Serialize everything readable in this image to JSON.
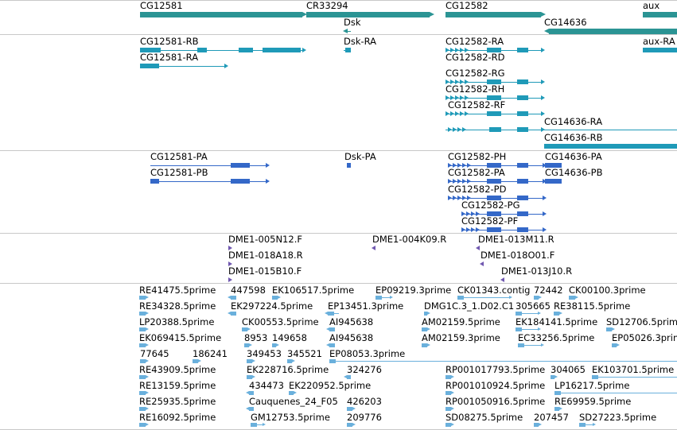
{
  "colors": {
    "gene": "#2b9494",
    "transcript": "#1f9ab8",
    "protein": "#3468c8",
    "clone": "#7058b0",
    "est": "#6ab0dc",
    "separator": "#c8c8c8"
  },
  "tracks": {
    "genes": {
      "labels": [
        "CG12581",
        "CR33294",
        "CG12582",
        "aux",
        "Dsk",
        "CG14636"
      ]
    },
    "transcripts": {
      "labels": [
        "CG12581-RB",
        "Dsk-RA",
        "CG12582-RA",
        "aux-RA",
        "CG12581-RA",
        "CG12582-RD",
        "CG12582-RG",
        "CG12582-RH",
        "CG12582-RF",
        "CG14636-RA",
        "CG14636-RB"
      ]
    },
    "proteins": {
      "labels": [
        "CG12581-PA",
        "Dsk-PA",
        "CG12582-PH",
        "CG14636-PA",
        "CG12581-PB",
        "CG12582-PA",
        "CG14636-PB",
        "CG12582-PD",
        "CG12582-PG",
        "CG12582-PF"
      ]
    },
    "clones": {
      "labels": [
        "DME1-005N12.F",
        "DME1-004K09.R",
        "DME1-013M11.R",
        "DME1-018A18.R",
        "DME1-018O01.F",
        "DME1-015B10.F",
        "DME1-013J10.R"
      ]
    },
    "ests": {
      "labels": [
        "RE41475.5prime",
        "447598",
        "EK106517.5prime",
        "EP09219.3prime",
        "CK01343.contig",
        "72442",
        "CK00100.3prime",
        "RE34328.5prime",
        "EK297224.5prime",
        "EP13451.3prime",
        "DMG1C.3_1.D02.C1",
        "305665",
        "RE38115.5prime",
        "LP20388.5prime",
        "CK00553.5prime",
        "AI945638",
        "AM02159.5prime",
        "EK184141.5prime",
        "SD12706.5prime",
        "EK069415.5prime",
        "8953",
        "149658",
        "AI945638",
        "AM02159.3prime",
        "EC33256.5prime",
        "EP05026.3prime",
        "77645",
        "186241",
        "349453",
        "345521",
        "EP08053.3prime",
        "RE43909.5prime",
        "EK228716.5prime",
        "324276",
        "RP001017793.5prime",
        "304065",
        "EK103701.5prime",
        "RE13159.5prime",
        "434473",
        "EK220952.5prime",
        "RP001010924.5prime",
        "LP16217.5prime",
        "RE25935.5prime",
        "Cauquenes_24_F05",
        "426203",
        "RP001050916.5prime",
        "RE69959.5prime",
        "RE16092.5prime",
        "GM12753.5prime",
        "209776",
        "SD08275.5prime",
        "207457",
        "SD27223.5prime"
      ]
    }
  }
}
